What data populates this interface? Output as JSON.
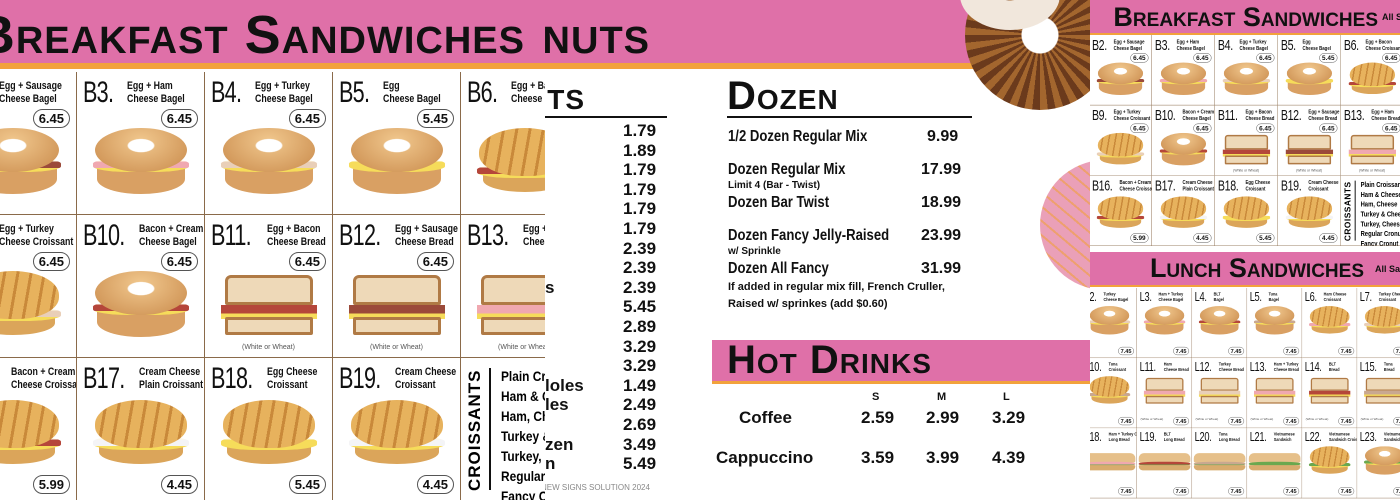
{
  "colors": {
    "header_pink": "#df70a8",
    "accent_orange": "#f2a23c",
    "border_brown": "#8a6a4a"
  },
  "breakfast": {
    "title": "Breakfast Sandwiches",
    "all_note": "All Sandwiches",
    "cells": [
      {
        "code": "B2.",
        "name": [
          "Egg + Sausage",
          "Cheese Bagel"
        ],
        "price": "6.45",
        "food": "bagel",
        "fill": "sausage"
      },
      {
        "code": "B3.",
        "name": [
          "Egg + Ham",
          "Cheese Bagel"
        ],
        "price": "6.45",
        "food": "bagel",
        "fill": "ham"
      },
      {
        "code": "B4.",
        "name": [
          "Egg + Turkey",
          "Cheese Bagel"
        ],
        "price": "6.45",
        "food": "bagel",
        "fill": "turkey"
      },
      {
        "code": "B5.",
        "name": [
          "Egg",
          "Cheese Bagel"
        ],
        "price": "5.45",
        "food": "bagel",
        "fill": "egg"
      },
      {
        "code": "B6.",
        "name": [
          "Egg + Bacon",
          "Cheese Croissant"
        ],
        "price": "6.45",
        "food": "croissant",
        "fill": "bacon"
      },
      {
        "code": "B9.",
        "name": [
          "Egg + Turkey",
          "Cheese Croissant"
        ],
        "price": "6.45",
        "food": "croissant",
        "fill": "turkey"
      },
      {
        "code": "B10.",
        "name": [
          "Bacon + Cream",
          "Cheese Bagel"
        ],
        "price": "6.45",
        "food": "bagel",
        "fill": "bacon"
      },
      {
        "code": "B11.",
        "name": [
          "Egg + Bacon",
          "Cheese Bread"
        ],
        "price": "6.45",
        "food": "bread",
        "fill": "bacon",
        "note": "(White or Wheat)"
      },
      {
        "code": "B12.",
        "name": [
          "Egg + Sausage",
          "Cheese Bread"
        ],
        "price": "6.45",
        "food": "bread",
        "fill": "sausage",
        "note": "(White or Wheat)"
      },
      {
        "code": "B13.",
        "name": [
          "Egg + Ham",
          "Cheese Bread"
        ],
        "price": "6.45",
        "food": "bread",
        "fill": "ham",
        "note": "(White or Wheat)"
      },
      {
        "code": "B16.",
        "name": [
          "Bacon + Cream",
          "Cheese Croissant"
        ],
        "price": "5.99",
        "food": "croissant",
        "fill": "bacon"
      },
      {
        "code": "B17.",
        "name": [
          "Cream Cheese",
          "Plain Croissant"
        ],
        "price": "4.45",
        "food": "croissant",
        "fill": "cream"
      },
      {
        "code": "B18.",
        "name": [
          "Egg Cheese",
          "Croissant"
        ],
        "price": "5.45",
        "food": "croissant",
        "fill": "egg"
      },
      {
        "code": "B19.",
        "name": [
          "Cream Cheese",
          "Croissant"
        ],
        "price": "4.45",
        "food": "croissant",
        "fill": "cream"
      }
    ],
    "croissants": {
      "label": "CROISSANTS",
      "items": [
        "Plain Croissant",
        "Ham & Cheese",
        "Ham, Cheese",
        "Turkey & Cheese",
        "Turkey, Cheese",
        "Regular Cronut",
        "Fancy Cronut"
      ]
    }
  },
  "donuts": {
    "title": "Donuts",
    "prices": [
      "1.79",
      "1.89",
      "1.79",
      "1.79",
      "1.79",
      "1.79",
      "2.39",
      "2.39",
      "2.39",
      "5.45",
      "2.89",
      "3.29",
      "3.29",
      "1.49",
      "2.49",
      "2.69",
      "3.49",
      "5.49"
    ],
    "name_fragments": [
      "",
      "",
      "",
      "",
      "",
      "",
      "",
      "",
      "s",
      "",
      "",
      "",
      "",
      "loles",
      "les",
      "",
      "zen",
      "n"
    ],
    "footer": "NEW SIGNS SOLUTION 2024"
  },
  "dozen": {
    "title": "Dozen",
    "items": [
      {
        "name": "1/2 Dozen Regular Mix",
        "price": "9.99",
        "sub": ""
      },
      {
        "name": "Dozen Regular Mix",
        "price": "17.99",
        "sub": "Limit 4 (Bar - Twist)"
      },
      {
        "name": "Dozen Bar Twist",
        "price": "18.99",
        "sub": ""
      },
      {
        "name": "Dozen Fancy Jelly-Raised",
        "price": "23.99",
        "sub": "w/ Sprinkle"
      },
      {
        "name": "Dozen All Fancy",
        "price": "31.99",
        "sub": ""
      }
    ],
    "note": [
      "If added in regular mix fill, French Cruller,",
      "Raised w/ sprinkes (add $0.60)"
    ]
  },
  "hot_drinks": {
    "title": "Hot Drinks",
    "sizes": [
      "S",
      "M",
      "L"
    ],
    "items": [
      {
        "name": "Coffee",
        "prices": [
          "2.59",
          "2.99",
          "3.29"
        ]
      },
      {
        "name": "Cappuccino",
        "prices": [
          "3.59",
          "3.99",
          "4.39"
        ]
      }
    ]
  },
  "lunch": {
    "title": "Lunch Sandwiches",
    "all_note": "All Sandwiches",
    "cells": [
      {
        "code": "L2.",
        "name": [
          "Turkey",
          "Cheese Bagel"
        ],
        "price": "7.45",
        "food": "bagel",
        "fill": "turkey"
      },
      {
        "code": "L3.",
        "name": [
          "Ham + Turkey",
          "Cheese Bagel"
        ],
        "price": "7.45",
        "food": "bagel",
        "fill": "ham"
      },
      {
        "code": "L4.",
        "name": [
          "BLT",
          "Bagel"
        ],
        "price": "7.45",
        "food": "bagel",
        "fill": "bacon"
      },
      {
        "code": "L5.",
        "name": [
          "Tuna",
          "Bagel"
        ],
        "price": "7.45",
        "food": "bagel",
        "fill": "tuna"
      },
      {
        "code": "L6.",
        "name": [
          "Ham Cheese",
          "Croissant"
        ],
        "price": "7.45",
        "food": "croissant",
        "fill": "ham"
      },
      {
        "code": "L7.",
        "name": [
          "Turkey Cheese",
          "Croissant"
        ],
        "price": "7.45",
        "food": "croissant",
        "fill": "turkey"
      },
      {
        "code": "L10.",
        "name": [
          "Tuna",
          "Croissant"
        ],
        "price": "7.45",
        "food": "croissant",
        "fill": "tuna"
      },
      {
        "code": "L11.",
        "name": [
          "Ham",
          "Cheese Bread"
        ],
        "price": "7.45",
        "food": "bread",
        "fill": "ham",
        "note": "(White or Wheat)"
      },
      {
        "code": "L12.",
        "name": [
          "Turkey",
          "Cheese Bread"
        ],
        "price": "7.45",
        "food": "bread",
        "fill": "turkey",
        "note": "(White or Wheat)"
      },
      {
        "code": "L13.",
        "name": [
          "Ham + Turkey",
          "Cheese Bread"
        ],
        "price": "7.45",
        "food": "bread",
        "fill": "ham",
        "note": "(White or Wheat)"
      },
      {
        "code": "L14.",
        "name": [
          "BLT",
          "Bread"
        ],
        "price": "7.45",
        "food": "bread",
        "fill": "bacon",
        "note": "(White or Wheat)"
      },
      {
        "code": "L15.",
        "name": [
          "Tuna",
          "Bread"
        ],
        "price": "7.45",
        "food": "bread",
        "fill": "tuna",
        "note": "(White or Wheat)"
      },
      {
        "code": "L18.",
        "name": [
          "Ham + Turkey Cheese",
          "Long Bread"
        ],
        "price": "7.45",
        "food": "long",
        "fill": "ham"
      },
      {
        "code": "L19.",
        "name": [
          "BLT",
          "Long Bread"
        ],
        "price": "7.45",
        "food": "long",
        "fill": "bacon"
      },
      {
        "code": "L20.",
        "name": [
          "Tuna",
          "Long Bread"
        ],
        "price": "7.45",
        "food": "long",
        "fill": "tuna"
      },
      {
        "code": "L21.",
        "name": [
          "Vietnamese",
          "Sandwich"
        ],
        "price": "7.45",
        "food": "long",
        "fill": "veg"
      },
      {
        "code": "L22.",
        "name": [
          "Vietnamese",
          "Sandwich Croissant"
        ],
        "price": "7.45",
        "food": "croissant",
        "fill": "veg"
      },
      {
        "code": "L23.",
        "name": [
          "Vietnamese",
          "Sandwich Bagel"
        ],
        "price": "7.45",
        "food": "bagel",
        "fill": "veg"
      }
    ]
  }
}
